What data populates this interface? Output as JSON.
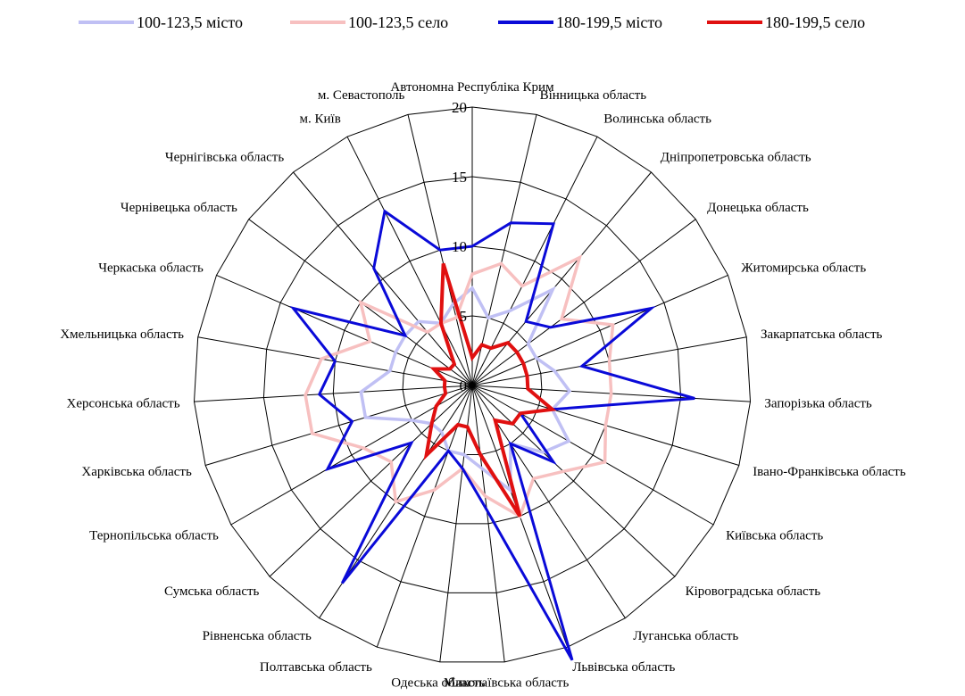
{
  "chart_data": {
    "type": "radar",
    "title": "",
    "categories": [
      "Автономна Республіка Крим",
      "Вінницька область",
      "Волинська область",
      "Дніпропетровська область",
      "Донецька область",
      "Житомирська область",
      "Закарпатська область",
      "Запорізька область",
      "Івано-Франківська область",
      "Київська область",
      "Кіровоградська область",
      "Луганська область",
      "Львівська область",
      "Миколаївська область",
      "Одеська область",
      "Полтавська область",
      "Рівненська область",
      "Сумська область",
      "Тернопільська область",
      "Харківська область",
      "Херсонська область",
      "Хмельницька область",
      "Черкаська область",
      "Чернівецька область",
      "Чернігівська область",
      "м. Київ",
      "м. Севастополь"
    ],
    "rlim": [
      0,
      20
    ],
    "ticks": [
      "0",
      "5",
      "10",
      "15",
      "20"
    ],
    "grid": true,
    "legend_position": "top",
    "series": [
      {
        "name": "100-123,5 місто",
        "color": "#c0c0f4",
        "width": 3.5,
        "values": [
          7,
          5,
          6,
          9,
          5,
          5,
          6,
          7,
          6,
          8,
          7,
          5,
          8,
          6,
          5,
          5,
          4,
          4,
          5,
          8,
          8,
          6,
          6,
          6,
          6,
          5,
          6
        ]
      },
      {
        "name": "100-123,5 село",
        "color": "#f7c0c0",
        "width": 3.5,
        "values": [
          8,
          9,
          8,
          12,
          8,
          11,
          10,
          10,
          10,
          11,
          9,
          8,
          10,
          8,
          6,
          8,
          10,
          8,
          9,
          12,
          12,
          11,
          8,
          10,
          5,
          5,
          5
        ]
      },
      {
        "name": "180-199,5 місто",
        "color": "#0a0ad8",
        "width": 3,
        "values": [
          10,
          12,
          13,
          6,
          7,
          14,
          8,
          16,
          6,
          4,
          8,
          5,
          21,
          9,
          6,
          5,
          17,
          6,
          12,
          9,
          11,
          10,
          14,
          6,
          11,
          14,
          10
        ]
      },
      {
        "name": "180-199,5 село",
        "color": "#e01010",
        "width": 4,
        "values": [
          2,
          3,
          3,
          4,
          4,
          4,
          4,
          4,
          6,
          4,
          4,
          3,
          10,
          5,
          3,
          3,
          6,
          4,
          3,
          2,
          2,
          2,
          3,
          2,
          2,
          5,
          9
        ]
      }
    ]
  }
}
